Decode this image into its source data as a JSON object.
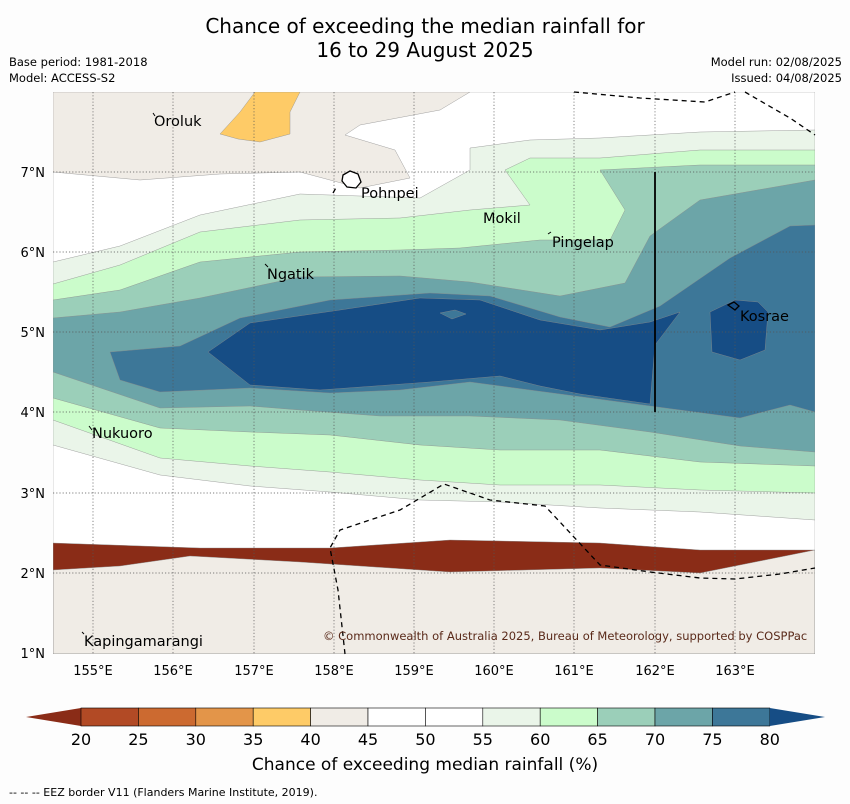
{
  "title": {
    "line1": "Chance of exceeding the median rainfall for",
    "line2": "16 to 29 August 2025"
  },
  "meta": {
    "base_period": "Base period: 1981-2018",
    "model": "Model: ACCESS-S2",
    "model_run": "Model run: 02/08/2025",
    "issued": "Issued: 04/08/2025"
  },
  "map": {
    "lat_labels": [
      "7°N",
      "6°N",
      "5°N",
      "4°N",
      "3°N",
      "2°N",
      "1°N"
    ],
    "lon_labels": [
      "155°E",
      "156°E",
      "157°E",
      "158°E",
      "159°E",
      "160°E",
      "161°E",
      "162°E",
      "163°E"
    ],
    "places": {
      "oroluk": "Oroluk",
      "pohnpei": "Pohnpei",
      "mokil": "Mokil",
      "pingelap": "Pingelap",
      "ngatik": "Ngatik",
      "kosrae": "Kosrae",
      "nukuoro": "Nukuoro",
      "kapingamarangi": "Kapingamarangi"
    },
    "copyright": "© Commonwealth of Australia 2025, Bureau of Meteorology, supported by COSPPac"
  },
  "colorbar": {
    "ticks": [
      "20",
      "25",
      "30",
      "35",
      "40",
      "45",
      "50",
      "55",
      "60",
      "65",
      "70",
      "75",
      "80"
    ],
    "colors": {
      "below20": "#8a2c17",
      "20_25": "#b24a25",
      "25_30": "#cc6a30",
      "30_35": "#e39549",
      "35_40": "#fecb67",
      "40_45": "#f0ece6",
      "45_50": "#ffffff",
      "50_55": "#ffffff",
      "55_60": "#eaf5e9",
      "60_65": "#cbfccb",
      "65_70": "#9bcfb9",
      "70_75": "#6ca5a8",
      "75_80": "#3d7798",
      "above80": "#164d85"
    },
    "label": "Chance of exceeding median rainfall (%)"
  },
  "eez_note": "--  --  -- EEZ border V11 (Flanders Marine Institute, 2019)."
}
